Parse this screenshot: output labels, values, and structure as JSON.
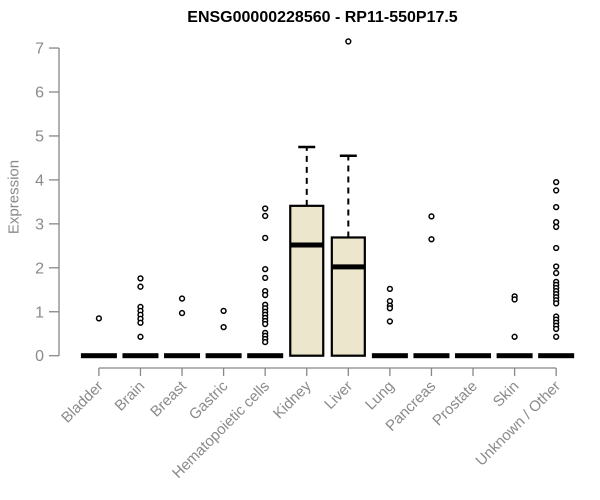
{
  "chart_data": {
    "type": "boxplot",
    "title": "ENSG00000228560 - RP11-550P17.5",
    "ylabel": "Expression",
    "xlabel": "",
    "ylim": [
      0,
      7
    ],
    "yticks": [
      0,
      1,
      2,
      3,
      4,
      5,
      6,
      7
    ],
    "grid": false,
    "legend": "none",
    "categories": [
      "Bladder",
      "Brain",
      "Breast",
      "Gastric",
      "Hematopoietic cells",
      "Kidney",
      "Liver",
      "Lung",
      "Pancreas",
      "Prostate",
      "Skin",
      "Unknown / Other"
    ],
    "series": [
      {
        "category": "Bladder",
        "q1": 0,
        "median": 0,
        "q3": 0,
        "whisker_low": 0,
        "whisker_high": 0,
        "outliers": [
          0.85
        ]
      },
      {
        "category": "Brain",
        "q1": 0,
        "median": 0,
        "q3": 0,
        "whisker_low": 0,
        "whisker_high": 0,
        "outliers": [
          1.76,
          1.57,
          1.11,
          1.02,
          0.93,
          0.84,
          0.75,
          0.43
        ]
      },
      {
        "category": "Breast",
        "q1": 0,
        "median": 0,
        "q3": 0,
        "whisker_low": 0,
        "whisker_high": 0,
        "outliers": [
          1.3,
          0.97
        ]
      },
      {
        "category": "Gastric",
        "q1": 0,
        "median": 0,
        "q3": 0,
        "whisker_low": 0,
        "whisker_high": 0,
        "outliers": [
          1.02,
          0.65
        ]
      },
      {
        "category": "Hematopoietic cells",
        "q1": 0,
        "median": 0,
        "q3": 0,
        "whisker_low": 0,
        "whisker_high": 0,
        "outliers": [
          3.35,
          3.18,
          2.68,
          1.97,
          1.77,
          1.47,
          1.38,
          1.16,
          1.08,
          1.0,
          0.93,
          0.86,
          0.79,
          0.72,
          0.52,
          0.45,
          0.38,
          0.31
        ]
      },
      {
        "category": "Kidney",
        "q1": 0,
        "median": 2.52,
        "q3": 3.41,
        "whisker_low": 0,
        "whisker_high": 4.75,
        "outliers": []
      },
      {
        "category": "Liver",
        "q1": 0,
        "median": 2.02,
        "q3": 2.69,
        "whisker_low": 0,
        "whisker_high": 4.55,
        "outliers": [
          7.15
        ]
      },
      {
        "category": "Lung",
        "q1": 0,
        "median": 0,
        "q3": 0,
        "whisker_low": 0,
        "whisker_high": 0,
        "outliers": [
          1.52,
          1.24,
          1.14,
          1.08,
          0.78
        ]
      },
      {
        "category": "Pancreas",
        "q1": 0,
        "median": 0,
        "q3": 0,
        "whisker_low": 0,
        "whisker_high": 0,
        "outliers": [
          3.17,
          2.65
        ]
      },
      {
        "category": "Prostate",
        "q1": 0,
        "median": 0,
        "q3": 0,
        "whisker_low": 0,
        "whisker_high": 0,
        "outliers": []
      },
      {
        "category": "Skin",
        "q1": 0,
        "median": 0,
        "q3": 0,
        "whisker_low": 0,
        "whisker_high": 0,
        "outliers": [
          1.35,
          1.28,
          0.43
        ]
      },
      {
        "category": "Unknown / Other",
        "q1": 0,
        "median": 0,
        "q3": 0,
        "whisker_low": 0,
        "whisker_high": 0,
        "outliers": [
          3.95,
          3.76,
          3.38,
          3.04,
          2.93,
          2.45,
          2.03,
          1.88,
          1.68,
          1.61,
          1.54,
          1.47,
          1.4,
          1.33,
          1.26,
          1.19,
          0.89,
          0.82,
          0.75,
          0.68,
          0.61,
          0.43
        ]
      }
    ],
    "colors": {
      "box_fill": "#ebe6cc",
      "box_border": "#000000",
      "median": "#000000",
      "outlier": "#000000",
      "axis": "#878787",
      "tick_label": "#8a8a8a",
      "title": "#000000",
      "background": "#ffffff"
    }
  }
}
